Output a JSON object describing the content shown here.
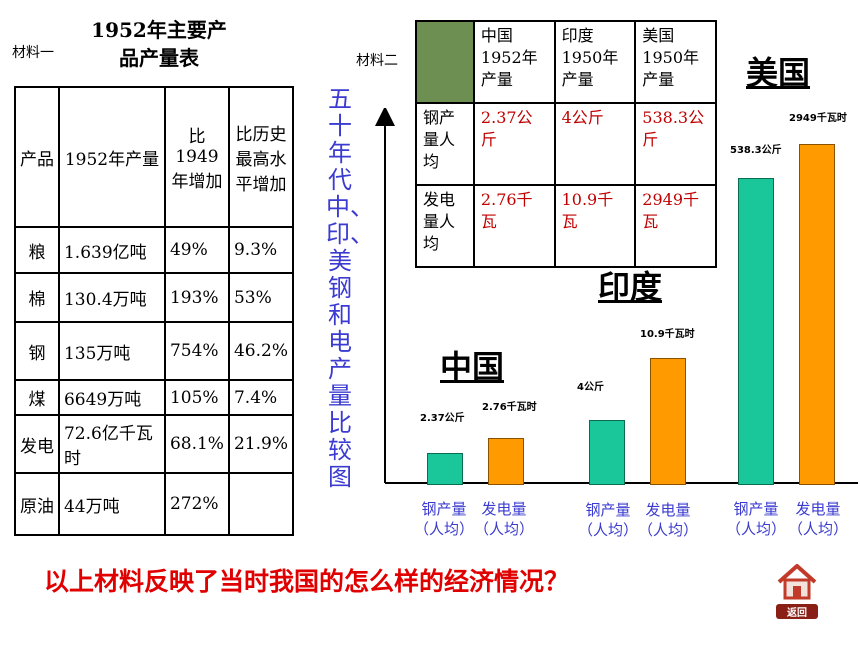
{
  "material1": {
    "label": "材料一",
    "title_line1": "1952年主要产",
    "title_line2": "品产量表",
    "headers": [
      "产品",
      "1952年产量",
      "比1949年增加",
      "比历史最高水平增加"
    ],
    "rows": [
      [
        "粮",
        "1.639亿吨",
        "49%",
        "9.3%"
      ],
      [
        "棉",
        "130.4万吨",
        "193%",
        "53%"
      ],
      [
        "钢",
        "135万吨",
        "754%",
        "46.2%"
      ],
      [
        "煤",
        "6649万吨",
        "105%",
        "7.4%"
      ],
      [
        "发电",
        "72.6亿千瓦时",
        "68.1%",
        "21.9%"
      ],
      [
        "原油",
        "44万吨",
        "272%",
        ""
      ]
    ]
  },
  "material2": {
    "label": "材料二",
    "headers": [
      "中国1952年产量",
      "印度1950年产量",
      "美国1950年产量"
    ],
    "rows": [
      {
        "label": "钢产量人均",
        "values": [
          "2.37公斤",
          "4公斤",
          "538.3公斤"
        ]
      },
      {
        "label": "发电量人均",
        "values": [
          "2.76千瓦",
          "10.9千瓦",
          "2949千瓦"
        ]
      }
    ]
  },
  "vertical_title": "五十年代中、印、美钢和电产量比较图",
  "chart": {
    "countries": [
      "中国",
      "印度",
      "美国"
    ],
    "x_labels": [
      [
        "钢产量",
        "（人均）"
      ],
      [
        "发电量",
        "（人均）"
      ]
    ],
    "bars": [
      {
        "country": "中国",
        "steel_label": "2.37公斤",
        "power_label": "2.76千瓦时"
      },
      {
        "country": "印度",
        "steel_label": "4公斤",
        "power_label": "10.9千瓦时"
      },
      {
        "country": "美国",
        "steel_label": "538.3公斤",
        "power_label": "2949千瓦时"
      }
    ],
    "colors": {
      "steel": "#1ac79b",
      "power": "#ff9a00",
      "axis_text": "#3b3bd1"
    }
  },
  "question": "以上材料反映了当时我国的怎么样的经济情况？",
  "home_button": {
    "icon": "house-icon",
    "label": "返回"
  }
}
